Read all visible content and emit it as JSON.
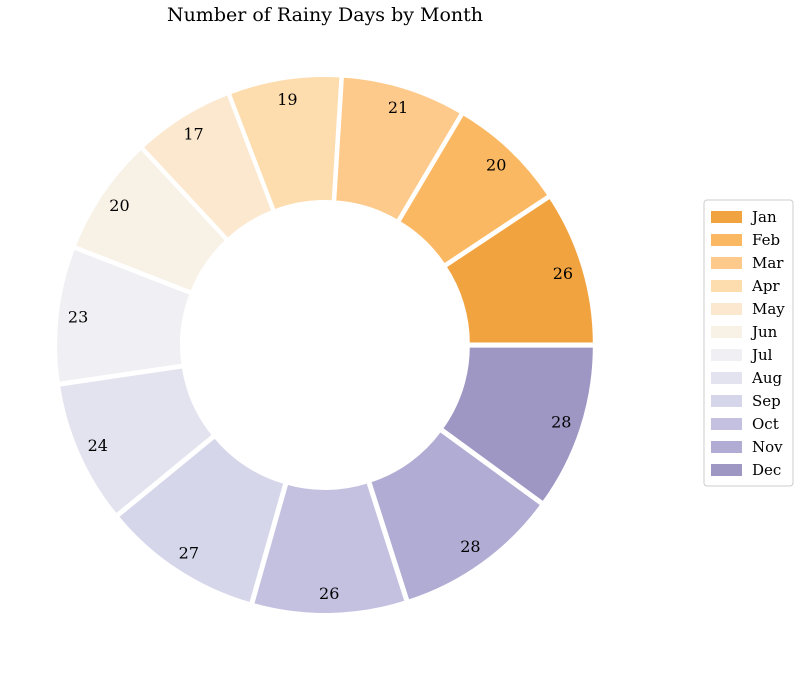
{
  "chart_data": {
    "type": "pie",
    "variant": "donut",
    "title": "Number of Rainy Days by Month",
    "categories": [
      "Jan",
      "Feb",
      "Mar",
      "Apr",
      "May",
      "Jun",
      "Jul",
      "Aug",
      "Sep",
      "Oct",
      "Nov",
      "Dec"
    ],
    "values": [
      26,
      20,
      21,
      19,
      17,
      20,
      23,
      24,
      27,
      26,
      28,
      28
    ],
    "colors": [
      "#f1a340",
      "#fbb863",
      "#fdca8b",
      "#fddcae",
      "#fbe8cf",
      "#f7f1e6",
      "#f0f0f4",
      "#e3e3ef",
      "#d6d6ea",
      "#c4c1e0",
      "#b1acd4",
      "#9e96c3"
    ],
    "legend_position": "right",
    "start_angle_deg": 0,
    "direction": "counterclockwise"
  }
}
